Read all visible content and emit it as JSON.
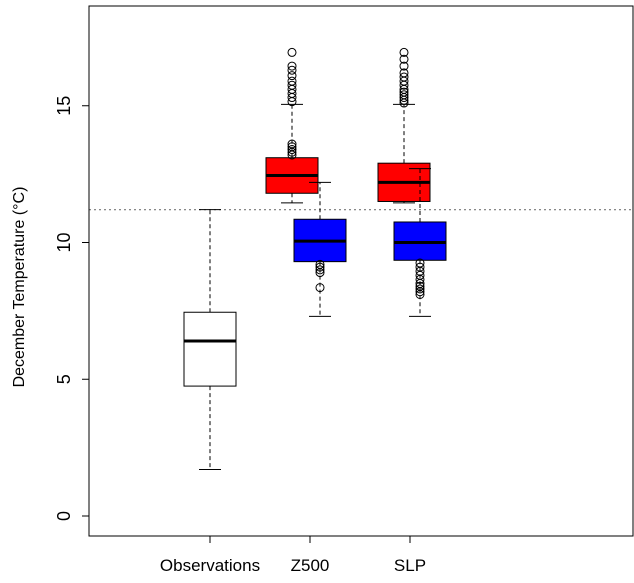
{
  "chart_data": {
    "type": "boxplot",
    "ylabel": "December Temperature (°C)",
    "ylim": [
      0,
      18.5
    ],
    "yticks": [
      0,
      5,
      10,
      15
    ],
    "categories": [
      "Observations",
      "Z500",
      "SLP"
    ],
    "reference_line": {
      "y": 11.2,
      "style": "dotted",
      "color": "#777777"
    },
    "boxes": [
      {
        "category": "Observations",
        "name": "",
        "color": "#ffffff",
        "offset": 0,
        "whisker_low": 1.7,
        "q1": 4.75,
        "median": 6.4,
        "q3": 7.45,
        "whisker_high": 11.2,
        "outliers": []
      },
      {
        "category": "Z500",
        "name": "",
        "color": "#ff0000",
        "offset": -0.18,
        "whisker_low": 11.45,
        "q1": 11.8,
        "median": 12.45,
        "q3": 13.1,
        "whisker_high": 15.05,
        "outliers": [
          15.15,
          15.3,
          15.45,
          15.6,
          15.75,
          15.9,
          16.1,
          16.3,
          16.45,
          16.95,
          13.2,
          13.3,
          13.4,
          13.5,
          13.6
        ]
      },
      {
        "category": "Z500",
        "name": "",
        "color": "#0000ff",
        "offset": 0.1,
        "whisker_low": 7.3,
        "q1": 9.3,
        "median": 10.05,
        "q3": 10.85,
        "whisker_high": 12.2,
        "outliers": [
          9.2,
          9.1,
          9.0,
          8.9,
          8.35
        ]
      },
      {
        "category": "SLP",
        "name": "",
        "color": "#ff0000",
        "offset": -0.06,
        "whisker_low": 11.45,
        "q1": 11.5,
        "median": 12.2,
        "q3": 12.9,
        "whisker_high": 15.05,
        "outliers": [
          15.1,
          15.2,
          15.3,
          15.4,
          15.5,
          15.6,
          15.75,
          15.9,
          16.05,
          16.2,
          16.45,
          16.7,
          16.95
        ]
      },
      {
        "category": "SLP",
        "name": "",
        "color": "#0000ff",
        "offset": 0.1,
        "whisker_low": 7.3,
        "q1": 9.35,
        "median": 10.0,
        "q3": 10.75,
        "whisker_high": 12.7,
        "outliers": [
          9.25,
          9.1,
          8.95,
          8.8,
          8.65,
          8.5,
          8.4,
          8.3,
          8.2,
          8.1
        ]
      }
    ]
  }
}
